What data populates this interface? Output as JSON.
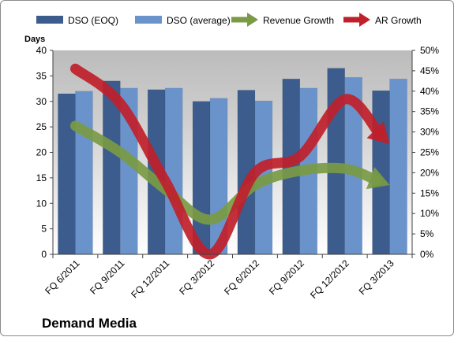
{
  "chart_data": {
    "type": "bar",
    "title": "Demand Media",
    "categories": [
      "FQ 6/2011",
      "FQ 9/2011",
      "FQ 12/2011",
      "FQ 3/2012",
      "FQ 6/2012",
      "FQ 9/2012",
      "FQ 12/2012",
      "FQ 3/2013"
    ],
    "y_axis": {
      "label": "Days",
      "ylim": [
        0,
        40
      ],
      "ticks": [
        "0",
        "5",
        "10",
        "15",
        "20",
        "25",
        "30",
        "35",
        "40"
      ]
    },
    "y2_axis": {
      "label": "",
      "ylim": [
        0,
        0.5
      ],
      "ticks": [
        "0%",
        "5%",
        "10%",
        "15%",
        "20%",
        "25%",
        "30%",
        "35%",
        "40%",
        "45%",
        "50%"
      ]
    },
    "series": [
      {
        "name": "DSO (EOQ)",
        "kind": "bar",
        "axis": "left",
        "color": "#3b5c8c",
        "values": [
          31.5,
          34.0,
          32.3,
          30.0,
          32.2,
          34.4,
          36.5,
          32.1
        ]
      },
      {
        "name": "DSO (average)",
        "kind": "bar",
        "axis": "left",
        "color": "#6a93cb",
        "values": [
          32.0,
          32.6,
          32.6,
          30.6,
          30.1,
          32.6,
          34.7,
          34.4
        ]
      },
      {
        "name": "Revenue Growth",
        "kind": "arrow-line",
        "axis": "right",
        "color": "#7a9a44",
        "values": [
          0.315,
          0.25,
          0.16,
          0.085,
          0.17,
          0.205,
          0.21,
          0.17
        ]
      },
      {
        "name": "AR Growth",
        "kind": "arrow-line",
        "axis": "right",
        "color": "#c0202a",
        "values": [
          0.455,
          0.37,
          0.18,
          0.0,
          0.2,
          0.24,
          0.38,
          0.27
        ]
      }
    ],
    "grid": false,
    "legend_position": "top"
  }
}
